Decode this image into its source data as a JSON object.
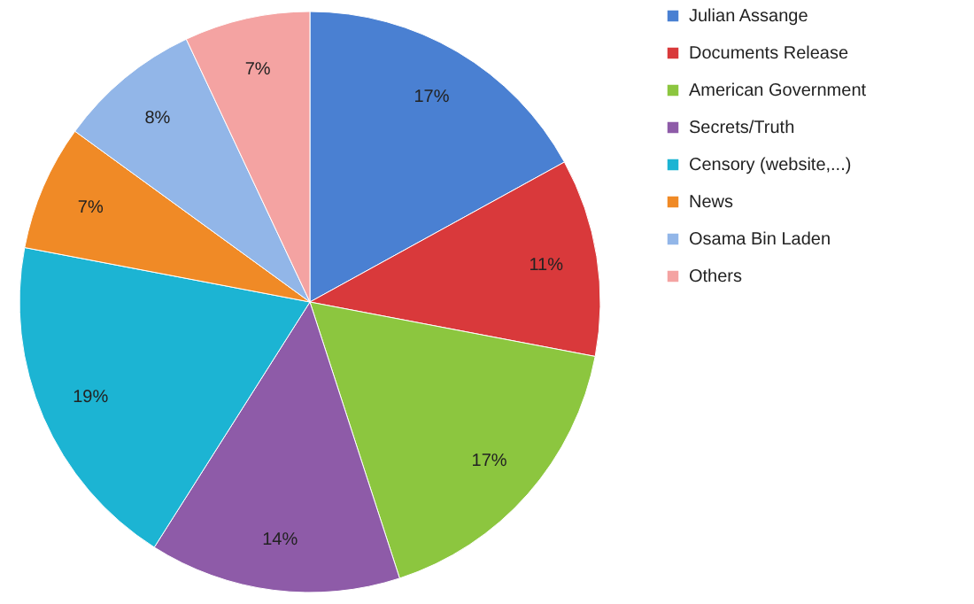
{
  "chart_data": {
    "type": "pie",
    "categories": [
      "Julian Assange",
      "Documents Release",
      "American Government",
      "Secrets/Truth",
      "Censory (website,...)",
      "News",
      "Osama Bin Laden",
      "Others"
    ],
    "values": [
      17,
      11,
      17,
      14,
      19,
      7,
      8,
      7
    ],
    "value_labels": [
      "17%",
      "11%",
      "17%",
      "14%",
      "19%",
      "7%",
      "8%",
      "7%"
    ],
    "colors": [
      "#4a80d2",
      "#d9393b",
      "#8cc63f",
      "#8e5ba8",
      "#1cb4d3",
      "#f08a26",
      "#92b6e8",
      "#f4a3a2"
    ],
    "legend": "right"
  }
}
